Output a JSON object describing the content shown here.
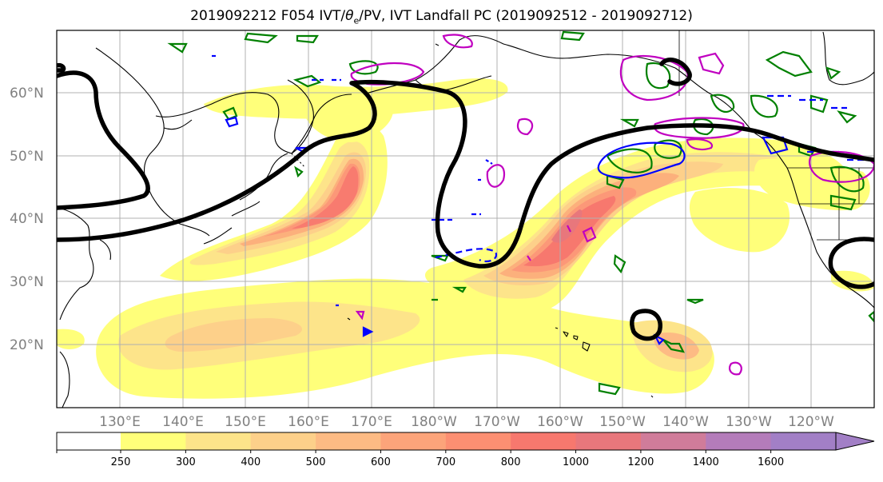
{
  "title": {
    "prefix": "2019092212 F054 IVT/",
    "theta_symbol": "θ",
    "theta_sub": "e",
    "suffix": "/PV, IVT Landfall PC (2019092512 - 2019092712)"
  },
  "map": {
    "lat_labels": [
      "60°N",
      "50°N",
      "40°N",
      "30°N",
      "20°N"
    ],
    "lon_labels": [
      "130°E",
      "140°E",
      "150°E",
      "160°E",
      "170°E",
      "180°W",
      "170°W",
      "160°W",
      "150°W",
      "140°W",
      "130°W",
      "120°W"
    ],
    "ocean_color": "#ffffff",
    "grid_color": "#b0b0b0",
    "coastline_color": "#000000",
    "contour_colors": {
      "theta_e": "#000000",
      "pv_positive": "#008000",
      "pv_negative": "#0000ff",
      "landfall_pc": "#c000c0"
    }
  },
  "colorbar": {
    "levels": [
      "250",
      "300",
      "400",
      "500",
      "600",
      "700",
      "800",
      "1000",
      "1200",
      "1400",
      "1600"
    ],
    "colors": [
      "#ffff7a",
      "#fde48a",
      "#fdd08a",
      "#fdbb84",
      "#fca47a",
      "#fc8f72",
      "#f7786e",
      "#e8777c",
      "#d07c9a",
      "#b47cba",
      "#a27fc6"
    ],
    "extend": "max"
  }
}
